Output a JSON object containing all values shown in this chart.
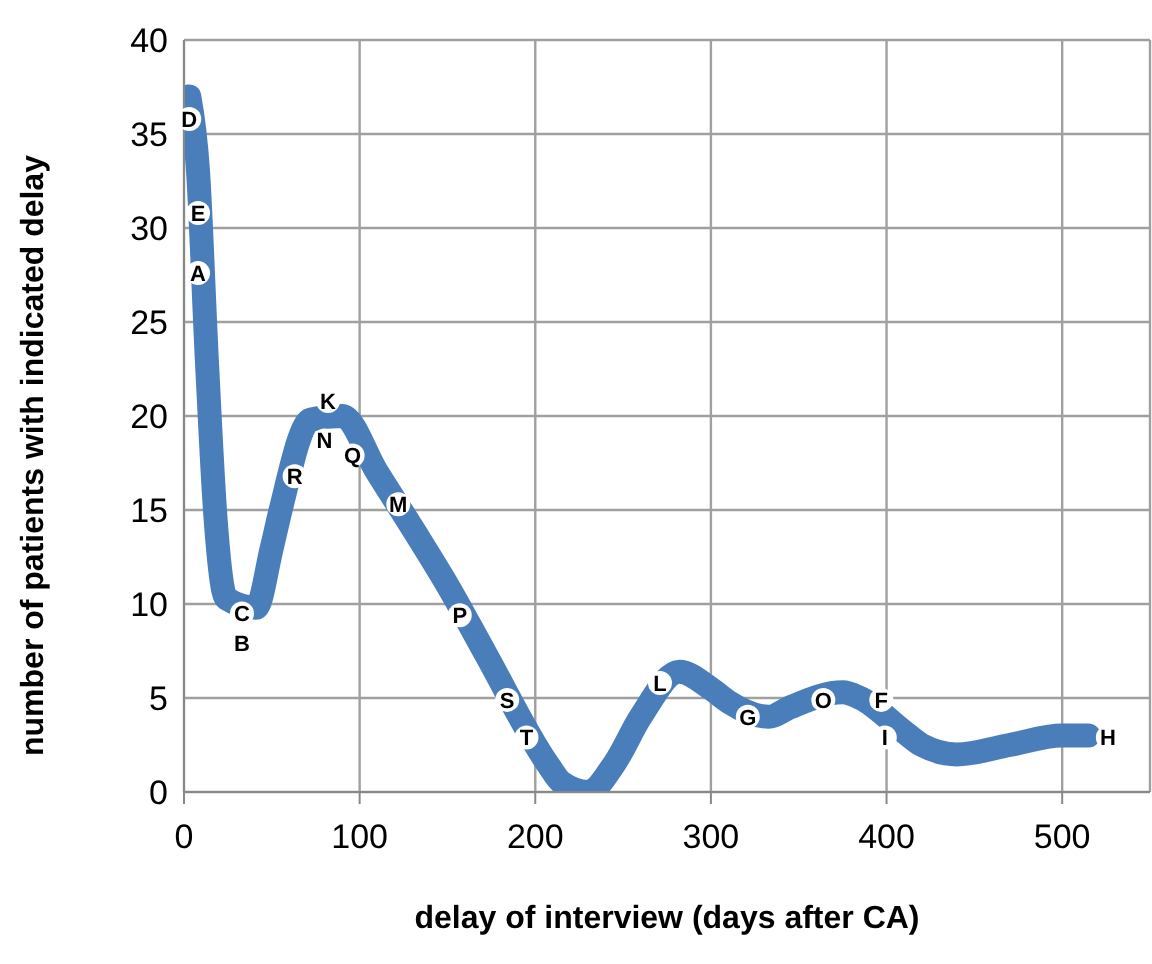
{
  "chart_data": {
    "type": "line",
    "xlabel": "delay of interview (days after CA)",
    "ylabel": "number of patients with indicated delay",
    "xlim": [
      0,
      550
    ],
    "xticks": [
      0,
      100,
      200,
      300,
      400,
      500
    ],
    "ylim": [
      0,
      40
    ],
    "yticks": [
      0,
      5,
      10,
      15,
      20,
      25,
      30,
      35,
      40
    ],
    "grid": true,
    "legend": false,
    "marker": "none",
    "line_style": "solid",
    "series": [
      {
        "color": "#4a7ebb",
        "x": [
          3,
          8,
          13,
          18,
          24,
          41,
          50,
          55,
          72,
          90,
          110,
          135,
          150,
          172,
          207,
          215,
          230,
          245,
          260,
          282,
          300,
          310,
          333,
          345,
          375,
          385,
          410,
          420,
          440,
          470,
          500,
          515
        ],
        "values": [
          37,
          33,
          23,
          14.5,
          10.3,
          9.8,
          13,
          15,
          19.8,
          20,
          17,
          13.3,
          11,
          7.3,
          1.5,
          0.5,
          0,
          1.5,
          4,
          6.4,
          5.5,
          4.8,
          4,
          4.5,
          5.3,
          5,
          3.2,
          2.5,
          2,
          2.5,
          3,
          3
        ]
      }
    ],
    "annotations": [
      {
        "text": "D",
        "x": 3,
        "y": 35.8
      },
      {
        "text": "E",
        "x": 8,
        "y": 30.8
      },
      {
        "text": "A",
        "x": 8,
        "y": 27.6
      },
      {
        "text": "C",
        "x": 33,
        "y": 9.5
      },
      {
        "text": "B",
        "x": 33,
        "y": 7.9
      },
      {
        "text": "R",
        "x": 63,
        "y": 16.8
      },
      {
        "text": "K",
        "x": 82,
        "y": 20.8
      },
      {
        "text": "N",
        "x": 80,
        "y": 18.7
      },
      {
        "text": "Q",
        "x": 96,
        "y": 17.9
      },
      {
        "text": "M",
        "x": 122,
        "y": 15.3
      },
      {
        "text": "P",
        "x": 157,
        "y": 9.4
      },
      {
        "text": "S",
        "x": 184,
        "y": 4.9
      },
      {
        "text": "T",
        "x": 195,
        "y": 2.9
      },
      {
        "text": "L",
        "x": 271,
        "y": 5.8
      },
      {
        "text": "G",
        "x": 321,
        "y": 4
      },
      {
        "text": "O",
        "x": 364,
        "y": 4.9
      },
      {
        "text": "F",
        "x": 397,
        "y": 4.9
      },
      {
        "text": "I",
        "x": 399,
        "y": 2.9
      },
      {
        "text": "H",
        "x": 526,
        "y": 2.9
      }
    ]
  }
}
